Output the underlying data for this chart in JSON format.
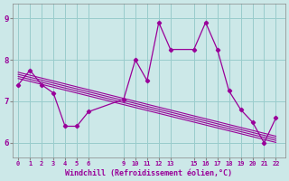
{
  "xlabel": "Windchill (Refroidissement éolien,°C)",
  "x_ticks": [
    0,
    1,
    2,
    3,
    4,
    5,
    6,
    9,
    10,
    11,
    12,
    13,
    15,
    16,
    17,
    18,
    19,
    20,
    21,
    22
  ],
  "ylim": [
    5.65,
    9.35
  ],
  "xlim": [
    -0.5,
    22.8
  ],
  "yticks": [
    6,
    7,
    8,
    9
  ],
  "bg_color": "#cce8e8",
  "line_color": "#990099",
  "grid_color": "#99cccc",
  "series": {
    "main": [
      7.4,
      7.75,
      7.4,
      7.2,
      6.4,
      6.4,
      6.75,
      7.05,
      8.0,
      7.5,
      8.9,
      8.25,
      8.25,
      8.9,
      8.25,
      7.25,
      6.8,
      6.5,
      6.0,
      6.6
    ],
    "trend1": [
      7.55,
      7.48,
      7.41,
      7.34,
      7.27,
      7.2,
      7.13,
      6.92,
      6.85,
      6.78,
      6.71,
      6.64,
      6.5,
      6.43,
      6.36,
      6.29,
      6.22,
      6.15,
      6.08,
      6.01
    ],
    "trend2": [
      7.6,
      7.53,
      7.46,
      7.39,
      7.32,
      7.25,
      7.18,
      6.97,
      6.9,
      6.83,
      6.76,
      6.69,
      6.55,
      6.48,
      6.41,
      6.34,
      6.27,
      6.2,
      6.13,
      6.06
    ],
    "trend3": [
      7.65,
      7.58,
      7.51,
      7.44,
      7.37,
      7.3,
      7.23,
      7.02,
      6.95,
      6.88,
      6.81,
      6.74,
      6.6,
      6.53,
      6.46,
      6.39,
      6.32,
      6.25,
      6.18,
      6.11
    ],
    "trend4": [
      7.7,
      7.63,
      7.56,
      7.49,
      7.42,
      7.35,
      7.28,
      7.07,
      7.0,
      6.93,
      6.86,
      6.79,
      6.65,
      6.58,
      6.51,
      6.44,
      6.37,
      6.3,
      6.23,
      6.16
    ]
  }
}
